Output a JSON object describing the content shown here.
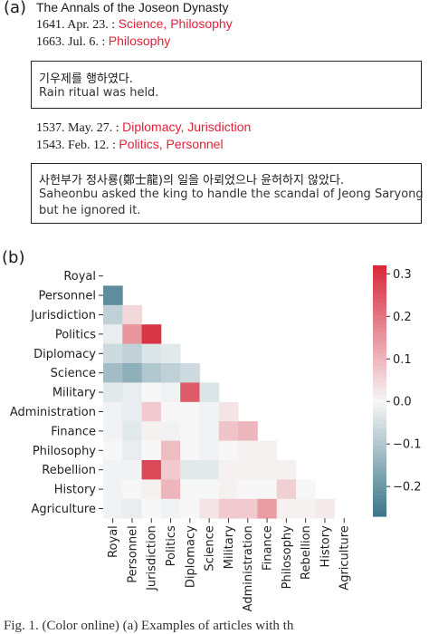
{
  "panel_a": {
    "label": "(a)",
    "title": "The Annals of the Joseon Dynasty",
    "group1": [
      {
        "date": "1641. Apr. 23. :",
        "categories": "Science, Philosophy"
      },
      {
        "date": "1663. Jul. 6. :",
        "categories": "Philosophy"
      }
    ],
    "box1": {
      "korean": "기우제를 행하였다.",
      "english": "Rain ritual was held."
    },
    "group2": [
      {
        "date": "1537. May. 27. :",
        "categories": "Diplomacy, Jurisdiction"
      },
      {
        "date": "1543. Feb. 12. :",
        "categories": "Politics, Personnel"
      }
    ],
    "box2": {
      "korean": "사헌부가 정사룡(鄭士龍)의 일을 아뢰었으나 윤허하지 않았다.",
      "english_line1": "Saheonbu asked the king to handle the scandal of Jeong Saryong",
      "english_line2": "but he ignored it."
    }
  },
  "panel_b": {
    "label": "(b)"
  },
  "caption": "Fig. 1. (Color online) (a) Examples of articles with th",
  "chart_data": {
    "type": "heatmap",
    "subtype": "lower-triangular correlation matrix",
    "labels": [
      "Royal",
      "Personnel",
      "Jurisdiction",
      "Politics",
      "Diplomacy",
      "Science",
      "Military",
      "Administration",
      "Finance",
      "Philosophy",
      "Rebellion",
      "History",
      "Agriculture"
    ],
    "colorbar": {
      "min": -0.27,
      "max": 0.32,
      "ticks": [
        0.3,
        0.2,
        0.1,
        0.0,
        -0.1,
        -0.2
      ],
      "tick_labels": [
        "0.3",
        "0.2",
        "0.1",
        "0.0",
        "−0.1",
        "−0.2"
      ],
      "negative_color": "#3b7589",
      "positive_color": "#d6283a",
      "center_color": "#f7f7f7"
    },
    "matrix": [
      [],
      [
        -0.22
      ],
      [
        -0.08,
        0.05
      ],
      [
        -0.02,
        0.15,
        0.3
      ],
      [
        -0.06,
        -0.08,
        -0.04,
        -0.03
      ],
      [
        -0.12,
        -0.15,
        -0.1,
        -0.08,
        -0.06
      ],
      [
        -0.03,
        -0.02,
        0.0,
        -0.01,
        0.24,
        -0.04
      ],
      [
        -0.01,
        -0.02,
        0.07,
        0.0,
        0.0,
        -0.01,
        0.03
      ],
      [
        -0.01,
        -0.03,
        0.01,
        -0.01,
        0.0,
        -0.01,
        0.08,
        0.1
      ],
      [
        0.0,
        -0.02,
        0.0,
        0.09,
        0.0,
        -0.01,
        0.0,
        0.01,
        0.01
      ],
      [
        -0.01,
        -0.01,
        0.27,
        0.07,
        -0.03,
        -0.03,
        0.01,
        0.01,
        0.01,
        0.01
      ],
      [
        -0.01,
        0.0,
        0.01,
        0.1,
        0.0,
        0.0,
        0.01,
        0.0,
        0.0,
        0.06,
        0.0
      ],
      [
        -0.01,
        -0.02,
        0.0,
        -0.01,
        0.0,
        0.03,
        0.07,
        0.07,
        0.14,
        0.01,
        0.01,
        0.02
      ]
    ]
  }
}
